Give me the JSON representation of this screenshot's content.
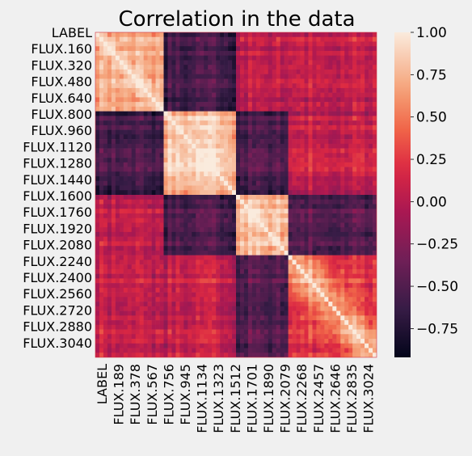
{
  "chart_data": {
    "type": "heatmap",
    "title": "Correlation in the data",
    "xlabel": "",
    "ylabel": "",
    "y_tick_labels": [
      "LABEL",
      "FLUX.160",
      "FLUX.320",
      "FLUX.480",
      "FLUX.640",
      "FLUX.800",
      "FLUX.960",
      "FLUX.1120",
      "FLUX.1280",
      "FLUX.1440",
      "FLUX.1600",
      "FLUX.1760",
      "FLUX.1920",
      "FLUX.2080",
      "FLUX.2240",
      "FLUX.2400",
      "FLUX.2560",
      "FLUX.2720",
      "FLUX.2880",
      "FLUX.3040"
    ],
    "x_tick_labels": [
      "LABEL",
      "FLUX.189",
      "FLUX.378",
      "FLUX.567",
      "FLUX.756",
      "FLUX.945",
      "FLUX.1134",
      "FLUX.1323",
      "FLUX.1512",
      "FLUX.1701",
      "FLUX.1890",
      "FLUX.2079",
      "FLUX.2268",
      "FLUX.2457",
      "FLUX.2646",
      "FLUX.2835",
      "FLUX.3024"
    ],
    "colorbar": {
      "vmin": -0.92,
      "vmax": 1.0,
      "ticks": [
        1.0,
        0.75,
        0.5,
        0.25,
        0.0,
        -0.25,
        -0.5,
        -0.75
      ],
      "tick_labels": [
        "1.00",
        "0.75",
        "0.50",
        "0.25",
        "0.00",
        "−0.25",
        "−0.50",
        "−0.75"
      ]
    },
    "grid": false,
    "colormap": "rocket",
    "block_structure": [
      {
        "from": 0.0,
        "to": 0.24,
        "strength": 0.8
      },
      {
        "from": 0.24,
        "to": 0.5,
        "strength": 1.0
      },
      {
        "from": 0.5,
        "to": 0.68,
        "strength": 1.0
      },
      {
        "from": 0.68,
        "to": 1.0,
        "strength": 0.6
      }
    ],
    "offdiag_negative": [
      {
        "rows": [
          0.24,
          0.5
        ],
        "cols": [
          0.0,
          0.24
        ],
        "value": -0.6
      },
      {
        "rows": [
          0.5,
          0.68
        ],
        "cols": [
          0.24,
          0.5
        ],
        "value": -0.55
      },
      {
        "rows": [
          0.68,
          1.0
        ],
        "cols": [
          0.5,
          0.68
        ],
        "value": -0.5
      }
    ]
  }
}
